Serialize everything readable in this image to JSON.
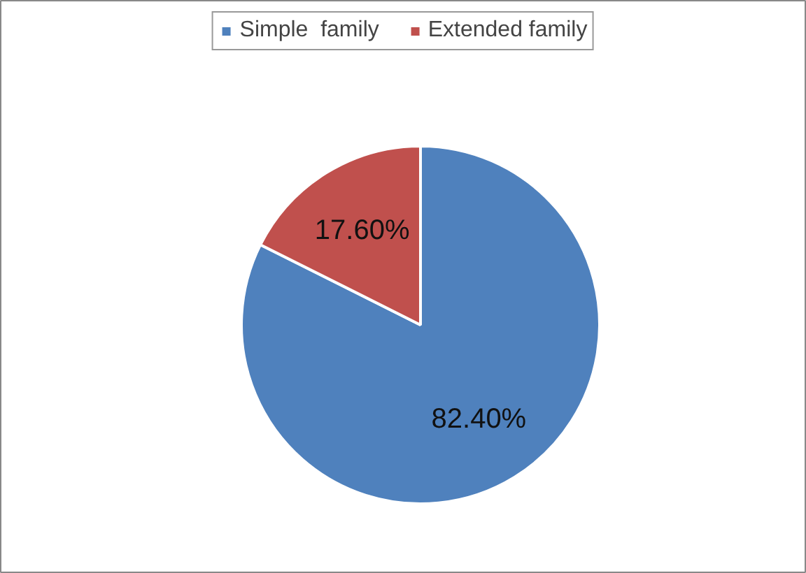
{
  "chart_data": {
    "type": "pie",
    "categories": [
      "Simple  family",
      "Extended family"
    ],
    "values": [
      82.4,
      17.6
    ],
    "colors": [
      "#4f81bd",
      "#c0504d"
    ],
    "value_labels": [
      "82.40%",
      "17.60%"
    ],
    "legend": "top"
  }
}
